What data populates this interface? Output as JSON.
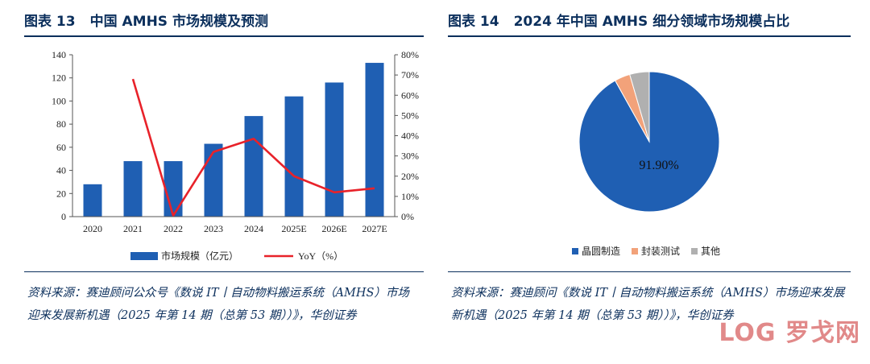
{
  "left": {
    "fig_num": "图表 13",
    "title": "中国 AMHS 市场规模及预测",
    "source": "资料来源：赛迪顾问公众号《数说 IT丨自动物料搬运系统（AMHS）市场迎来发展新机遇（2025 年第 14 期（总第 53 期））》，华创证券"
  },
  "right": {
    "fig_num": "图表 14",
    "title": "2024 年中国 AMHS 细分领域市场规模占比",
    "source": "资料来源：赛迪顾问《数说 IT丨自动物料搬运系统（AMHS）市场迎来发展新机遇（2025 年第 14 期（总第 53 期））》，华创证券"
  },
  "chart_data": [
    {
      "type": "bar",
      "categories": [
        "2020",
        "2021",
        "2022",
        "2023",
        "2024",
        "2025E",
        "2026E",
        "2027E"
      ],
      "series": [
        {
          "name": "市场规模（亿元）",
          "type": "bar",
          "axis": "left",
          "color": "#1f5fb3",
          "values": [
            28,
            48,
            48,
            63,
            87,
            104,
            116,
            133
          ]
        },
        {
          "name": "YoY（%）",
          "type": "line",
          "axis": "right",
          "color": "#e8222a",
          "values": [
            null,
            68,
            0.5,
            32,
            38.5,
            20,
            12,
            14
          ]
        }
      ],
      "ylim_left": [
        0,
        140
      ],
      "yticks_left": [
        "0",
        "20",
        "40",
        "60",
        "80",
        "100",
        "120",
        "140"
      ],
      "ylim_right": [
        0,
        80
      ],
      "yticks_right": [
        "0%",
        "10%",
        "20%",
        "30%",
        "40%",
        "50%",
        "60%",
        "70%",
        "80%"
      ],
      "legend_position": "bottom"
    },
    {
      "type": "pie",
      "labels": [
        "晶圆制造",
        "封装测试",
        "其他"
      ],
      "values": [
        91.9,
        3.6,
        4.5
      ],
      "colors": [
        "#1f5fb3",
        "#f2a27a",
        "#b0b0b0"
      ],
      "data_labels": [
        "91.90%",
        "",
        ""
      ],
      "legend_position": "bottom"
    }
  ],
  "watermark": "LOG 罗戈网"
}
